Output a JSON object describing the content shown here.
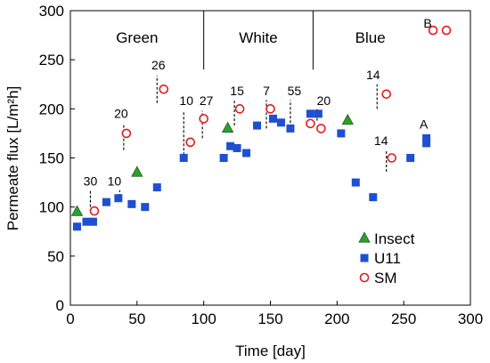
{
  "chart_data": {
    "type": "scatter",
    "xlabel": "Time [day]",
    "ylabel": "Permeate flux [L/m²h]",
    "xlim": [
      0,
      300
    ],
    "ylim": [
      0,
      300
    ],
    "xticks": [
      0,
      50,
      100,
      150,
      200,
      250,
      300
    ],
    "yticks": [
      0,
      50,
      100,
      150,
      200,
      250,
      300
    ],
    "grid": false,
    "legend_position": "bottom-right",
    "regions": [
      {
        "label": "Green",
        "start": 0,
        "end": 100
      },
      {
        "label": "White",
        "start": 100,
        "end": 182
      },
      {
        "label": "Blue",
        "start": 182,
        "end": 300
      }
    ],
    "series": [
      {
        "name": "Insect",
        "marker": "triangle",
        "color": "#2ca02c",
        "points": [
          [
            5,
            95
          ],
          [
            50,
            135
          ],
          [
            118,
            180
          ],
          [
            208,
            188
          ]
        ]
      },
      {
        "name": "U11",
        "marker": "square",
        "color": "#1f4fd1",
        "points": [
          [
            5,
            80
          ],
          [
            12,
            85
          ],
          [
            17,
            85
          ],
          [
            27,
            105
          ],
          [
            36,
            109
          ],
          [
            46,
            103
          ],
          [
            56,
            100
          ],
          [
            65,
            120
          ],
          [
            85,
            150
          ],
          [
            115,
            150
          ],
          [
            120,
            162
          ],
          [
            125,
            160
          ],
          [
            132,
            155
          ],
          [
            140,
            183
          ],
          [
            152,
            190
          ],
          [
            158,
            186
          ],
          [
            165,
            180
          ],
          [
            180,
            195
          ],
          [
            186,
            195
          ],
          [
            203,
            175
          ],
          [
            214,
            125
          ],
          [
            227,
            110
          ],
          [
            255,
            150
          ],
          [
            267,
            165
          ],
          [
            267,
            170
          ]
        ]
      },
      {
        "name": "SM",
        "marker": "circle",
        "color": "#e31a1c",
        "points": [
          [
            18,
            96
          ],
          [
            42,
            175
          ],
          [
            70,
            220
          ],
          [
            90,
            166
          ],
          [
            100,
            190
          ],
          [
            127,
            200
          ],
          [
            150,
            200
          ],
          [
            180,
            185
          ],
          [
            188,
            180
          ],
          [
            237,
            215
          ],
          [
            241,
            150
          ],
          [
            272,
            280
          ],
          [
            282,
            280
          ]
        ]
      }
    ],
    "annotations": [
      {
        "text": "30",
        "x": 15,
        "y": 122
      },
      {
        "text": "10",
        "x": 33,
        "y": 122
      },
      {
        "text": "20",
        "x": 38,
        "y": 191
      },
      {
        "text": "26",
        "x": 66,
        "y": 240
      },
      {
        "text": "10",
        "x": 87,
        "y": 204
      },
      {
        "text": "27",
        "x": 102,
        "y": 204
      },
      {
        "text": "15",
        "x": 125,
        "y": 214
      },
      {
        "text": "7",
        "x": 147,
        "y": 214
      },
      {
        "text": "55",
        "x": 168,
        "y": 214
      },
      {
        "text": "20",
        "x": 190,
        "y": 204
      },
      {
        "text": "14",
        "x": 227,
        "y": 230
      },
      {
        "text": "14",
        "x": 233,
        "y": 163
      },
      {
        "text": "A",
        "x": 265,
        "y": 180
      },
      {
        "text": "B",
        "x": 268,
        "y": 283
      }
    ],
    "leaders": [
      {
        "x": 15,
        "y1": 100,
        "y2": 117
      },
      {
        "x": 37,
        "y1": 106,
        "y2": 117
      },
      {
        "x": 40,
        "y1": 158,
        "y2": 185
      },
      {
        "x": 65,
        "y1": 206,
        "y2": 234
      },
      {
        "x": 85,
        "y1": 153,
        "y2": 198
      },
      {
        "x": 99,
        "y1": 170,
        "y2": 198
      },
      {
        "x": 123,
        "y1": 183,
        "y2": 209
      },
      {
        "x": 147,
        "y1": 180,
        "y2": 209
      },
      {
        "x": 165,
        "y1": 181,
        "y2": 209
      },
      {
        "x": 185,
        "y1": 188,
        "y2": 200
      },
      {
        "x": 230,
        "y1": 200,
        "y2": 225
      },
      {
        "x": 237,
        "y1": 136,
        "y2": 158
      }
    ]
  }
}
